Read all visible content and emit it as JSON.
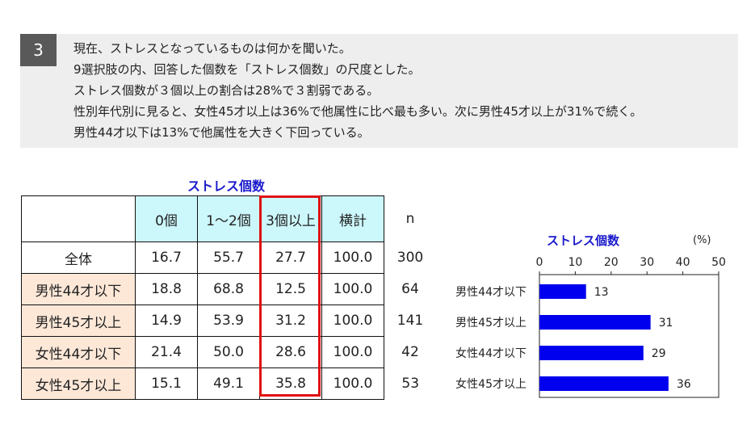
{
  "summary": {
    "number": "3",
    "lines": [
      "現在、ストレスとなっているものは何かを聞いた。",
      "9選択肢の内、回答した個数を「ストレス個数」の尺度とした。",
      "ストレス個数が３個以上の割合は28%で３割弱である。",
      "性別年代別に見ると、女性45才以上は36%で他属性に比べ最も多い。次に男性45才以上が31%で続く。",
      "男性44才以下は13%で他属性を大きく下回っている。"
    ]
  },
  "table": {
    "title": "ストレス個数",
    "columns": [
      "0個",
      "1～2個",
      "3個以上",
      "横計",
      "n"
    ],
    "rows": [
      {
        "label": "全体",
        "values": [
          "16.7",
          "55.7",
          "27.7",
          "100.0",
          "300"
        ]
      },
      {
        "label": "男性44才以下",
        "values": [
          "18.8",
          "68.8",
          "12.5",
          "100.0",
          "64"
        ]
      },
      {
        "label": "男性45才以上",
        "values": [
          "14.9",
          "53.9",
          "31.2",
          "100.0",
          "141"
        ]
      },
      {
        "label": "女性44才以下",
        "values": [
          "21.4",
          "50.0",
          "28.6",
          "100.0",
          "42"
        ]
      },
      {
        "label": "女性45才以上",
        "values": [
          "15.1",
          "49.1",
          "35.8",
          "100.0",
          "53"
        ]
      }
    ],
    "highlight_color": "#e01010",
    "header_color": "#ccf7fb",
    "segment_color": "#fde8d8"
  },
  "chart_data": {
    "type": "bar",
    "orientation": "horizontal",
    "title": "ストレス個数",
    "unit": "(%)",
    "categories": [
      "男性44才以下",
      "男性45才以上",
      "女性44才以下",
      "女性45才以上"
    ],
    "values": [
      13,
      31,
      29,
      36
    ],
    "xlim": [
      0,
      50
    ],
    "xticks": [
      "0",
      "10",
      "20",
      "30",
      "40",
      "50"
    ],
    "axis_position": "top",
    "grid": false,
    "bar_color": "#0000ee"
  }
}
